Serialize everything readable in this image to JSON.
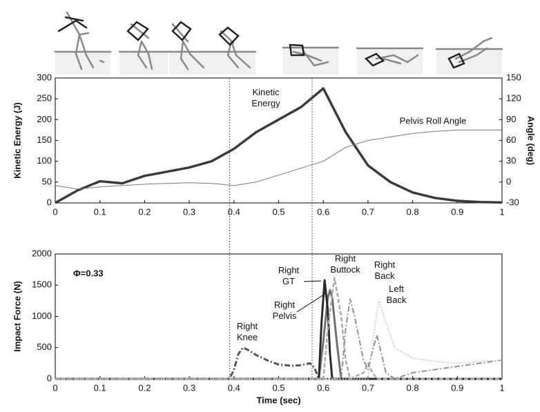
{
  "chart_data": [
    {
      "type": "line",
      "x": [
        0,
        0.05,
        0.1,
        0.15,
        0.2,
        0.25,
        0.3,
        0.35,
        0.4,
        0.45,
        0.5,
        0.55,
        0.6,
        0.65,
        0.7,
        0.75,
        0.8,
        0.85,
        0.9,
        0.95,
        1
      ],
      "xlim": [
        0,
        1
      ],
      "xticks": [
        0,
        0.1,
        0.2,
        0.3,
        0.4,
        0.5,
        0.6,
        0.7,
        0.8,
        0.9,
        1
      ],
      "ylabel": "Kinetic Energy (J)",
      "ylim": [
        0,
        300
      ],
      "yticks": [
        0,
        50,
        100,
        150,
        200,
        250,
        300
      ],
      "y2label": "Angle (deg)",
      "y2lim": [
        -30,
        150
      ],
      "y2ticks": [
        -30,
        0,
        30,
        60,
        90,
        120,
        150
      ],
      "series": [
        {
          "name": "Kinetic\nEnergy",
          "color": "#3a3a3a",
          "line_width": 3.5,
          "values": [
            0,
            30,
            52,
            47,
            65,
            75,
            85,
            100,
            130,
            170,
            200,
            230,
            275,
            170,
            90,
            50,
            25,
            12,
            5,
            2,
            1
          ]
        },
        {
          "name": "Pelvis Roll Angle",
          "color": "#777777",
          "line_width": 1,
          "axis": "y2",
          "values": [
            -5,
            -10,
            -7,
            -5,
            -3,
            -2,
            -1,
            -2,
            -5,
            0,
            10,
            20,
            30,
            50,
            60,
            65,
            70,
            73,
            75,
            75,
            75
          ]
        }
      ]
    },
    {
      "type": "line",
      "xlabel": "Time (sec)",
      "xlim": [
        0,
        1
      ],
      "xticks": [
        0,
        0.1,
        0.2,
        0.3,
        0.4,
        0.5,
        0.6,
        0.7,
        0.8,
        0.9,
        1
      ],
      "ylabel": "Impact Force (N)",
      "ylim": [
        0,
        2000
      ],
      "yticks": [
        0,
        500,
        1000,
        1500,
        2000
      ],
      "annotation": "Φ=0.33",
      "vlines": [
        0.39,
        0.575
      ],
      "series": [
        {
          "name": "Right\nKnee",
          "color": "#555555",
          "line_width": 3,
          "dash": "8 3 2 3",
          "x": [
            0,
            0.39,
            0.4,
            0.41,
            0.42,
            0.43,
            0.45,
            0.48,
            0.5,
            0.53,
            0.55,
            0.57,
            0.58,
            0.59,
            1
          ],
          "values": [
            0,
            0,
            150,
            400,
            500,
            470,
            380,
            280,
            230,
            210,
            220,
            250,
            180,
            0,
            0
          ]
        },
        {
          "name": "Right\nPelvis",
          "color": "#707070",
          "line_width": 3,
          "x": [
            0,
            0.59,
            0.6,
            0.61,
            0.615,
            0.62,
            0.63,
            0.64,
            1
          ],
          "values": [
            0,
            0,
            600,
            1300,
            1420,
            1300,
            600,
            0,
            0
          ]
        },
        {
          "name": "Right\nGT",
          "color": "#2a2a2a",
          "line_width": 3,
          "x": [
            0,
            0.59,
            0.596,
            0.603,
            0.61,
            0.615,
            0.62,
            1
          ],
          "values": [
            0,
            0,
            900,
            1580,
            1100,
            400,
            0,
            0
          ]
        },
        {
          "name": "Right\nButtock",
          "color": "#a8a8a8",
          "line_width": 2.5,
          "dash": "6 3",
          "x": [
            0,
            0.6,
            0.61,
            0.625,
            0.64,
            0.65,
            0.66,
            0.69,
            0.7,
            0.71,
            0.72,
            1
          ],
          "values": [
            0,
            0,
            800,
            1620,
            1000,
            300,
            0,
            100,
            250,
            100,
            0,
            0
          ]
        },
        {
          "name": "Right\nBack",
          "color": "#909090",
          "line_width": 2,
          "dash": "8 3 2 3",
          "x": [
            0,
            0.64,
            0.65,
            0.66,
            0.67,
            0.69,
            0.7,
            0.71,
            0.72,
            0.73,
            0.74,
            0.76,
            0.8,
            0.9,
            1
          ],
          "values": [
            0,
            0,
            800,
            1280,
            1000,
            300,
            150,
            450,
            700,
            400,
            100,
            0,
            100,
            200,
            300
          ]
        },
        {
          "name": "Left\nBack",
          "color": "#c4c4c4",
          "line_width": 1.5,
          "dash": "2 2",
          "x": [
            0,
            0.7,
            0.71,
            0.72,
            0.725,
            0.74,
            0.76,
            0.8,
            0.85,
            0.9,
            0.95,
            1
          ],
          "values": [
            0,
            0,
            500,
            1100,
            1250,
            900,
            500,
            330,
            280,
            250,
            280,
            300
          ]
        }
      ]
    }
  ]
}
